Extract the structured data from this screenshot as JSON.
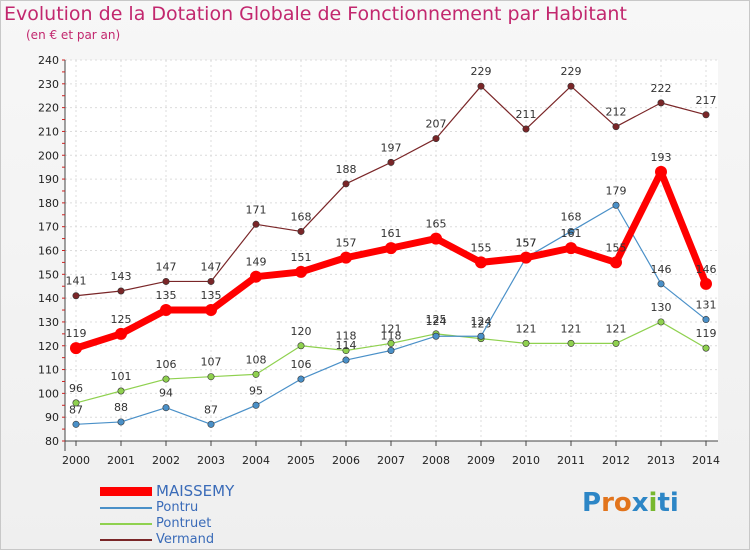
{
  "chart_data": {
    "type": "line",
    "title": "Evolution de la Dotation Globale de Fonctionnement par Habitant",
    "subtitle": "(en € et par an)",
    "xlabel": "",
    "ylabel": "",
    "ylim": [
      80,
      240
    ],
    "ytick_step": 10,
    "categories": [
      "2000",
      "2001",
      "2002",
      "2003",
      "2004",
      "2005",
      "2006",
      "2007",
      "2008",
      "2009",
      "2010",
      "2011",
      "2012",
      "2013",
      "2014"
    ],
    "series": [
      {
        "name": "Vermand",
        "color": "#7a2628",
        "values": [
          141,
          143,
          147,
          147,
          171,
          168,
          188,
          197,
          207,
          229,
          211,
          229,
          212,
          222,
          217
        ]
      },
      {
        "name": "Pontruet",
        "color": "#8fd14f",
        "values": [
          96,
          101,
          106,
          107,
          108,
          120,
          118,
          121,
          125,
          123,
          121,
          121,
          121,
          130,
          119
        ]
      },
      {
        "name": "Pontru",
        "color": "#4a90c8",
        "values": [
          87,
          88,
          94,
          87,
          95,
          106,
          114,
          118,
          124,
          124,
          157,
          168,
          179,
          146,
          131
        ]
      },
      {
        "name": "MAISSEMY",
        "color": "#ff0000",
        "values": [
          119,
          125,
          135,
          135,
          149,
          151,
          157,
          161,
          165,
          155,
          157,
          161,
          155,
          193,
          146
        ]
      }
    ],
    "legend": [
      "MAISSEMY",
      "Pontru",
      "Pontruet",
      "Vermand"
    ],
    "grid": true
  },
  "logo": {
    "letters": [
      "P",
      "r",
      "o",
      "x",
      "i",
      "ti"
    ]
  }
}
